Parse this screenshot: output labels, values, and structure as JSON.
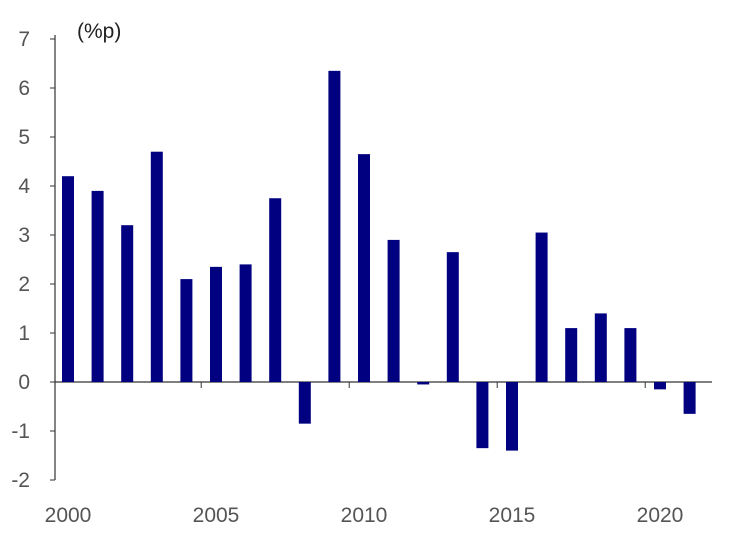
{
  "chart_data": {
    "type": "bar",
    "title": "",
    "unit_label": "(%p)",
    "xlabel": "",
    "ylabel": "",
    "x": [
      2000,
      2001,
      2002,
      2003,
      2004,
      2005,
      2006,
      2007,
      2008,
      2009,
      2010,
      2011,
      2012,
      2013,
      2014,
      2015,
      2016,
      2017,
      2018,
      2019,
      2020,
      2021
    ],
    "values": [
      4.2,
      3.9,
      3.2,
      4.7,
      2.1,
      2.35,
      2.4,
      3.75,
      -0.85,
      6.35,
      4.65,
      2.9,
      -0.05,
      2.65,
      -1.35,
      -1.4,
      3.05,
      1.1,
      1.4,
      1.1,
      -0.15,
      -0.65
    ],
    "x_tick_labels": [
      "2000",
      "2005",
      "2010",
      "2015",
      "2020"
    ],
    "y_tick_labels": [
      "7",
      "6",
      "5",
      "4",
      "3",
      "2",
      "1",
      "0",
      "-1",
      "-2"
    ],
    "ylim": [
      -2,
      7
    ],
    "grid": false,
    "bar_color": "#000080",
    "axis_color": "#333333"
  }
}
